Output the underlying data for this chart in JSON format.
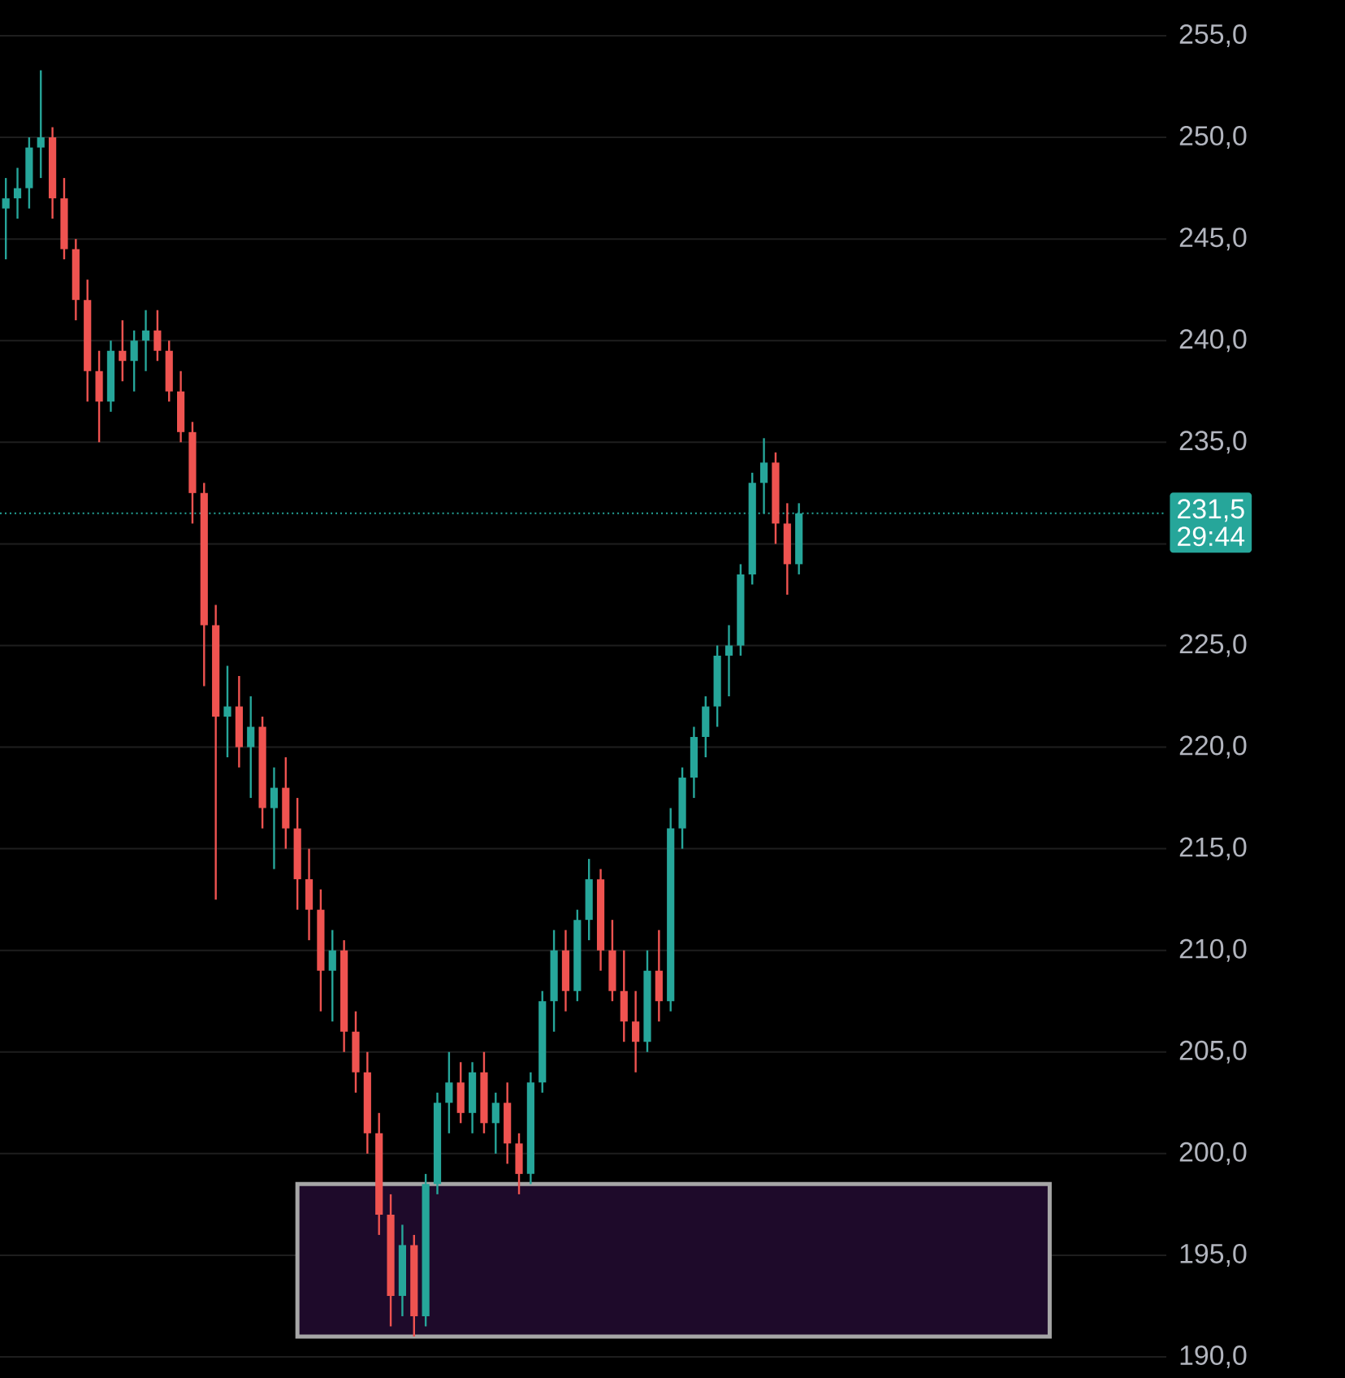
{
  "chart_data": {
    "type": "candlestick",
    "categories": [
      null,
      null,
      null,
      null,
      null,
      null,
      null,
      null,
      null,
      null,
      null,
      null,
      null,
      null,
      null,
      null,
      null,
      null,
      null,
      null,
      null,
      null,
      null,
      null,
      null,
      null,
      null,
      null,
      null,
      null,
      null,
      null,
      null,
      null,
      null,
      null,
      null,
      null,
      null,
      null,
      null,
      null,
      null,
      null,
      null,
      null,
      null,
      null,
      null,
      null,
      null,
      null,
      null,
      null,
      null,
      null,
      null,
      null,
      null,
      null,
      null,
      null,
      null,
      null,
      null,
      null,
      null,
      null,
      null,
      null,
      null,
      null,
      null,
      null,
      null,
      null,
      null,
      null,
      null,
      null,
      null,
      null,
      null,
      null,
      null,
      null,
      null,
      null,
      null,
      null,
      null,
      null,
      null,
      null,
      null,
      null,
      null,
      null,
      null,
      null
    ],
    "ohlc": [
      [
        246.5,
        248,
        244,
        247
      ],
      [
        247,
        248.5,
        246,
        247.5
      ],
      [
        247.5,
        250,
        246.5,
        249.5
      ],
      [
        249.5,
        253.3,
        248,
        250
      ],
      [
        250,
        250.5,
        246,
        247
      ],
      [
        247,
        248,
        244,
        244.5
      ],
      [
        244.5,
        245,
        241,
        242
      ],
      [
        242,
        243,
        237,
        238.5
      ],
      [
        238.5,
        239.5,
        235,
        237
      ],
      [
        237,
        240,
        236.5,
        239.5
      ],
      [
        239.5,
        241,
        238,
        239
      ],
      [
        239,
        240.5,
        237.5,
        240
      ],
      [
        240,
        241.5,
        238.5,
        240.5
      ],
      [
        240.5,
        241.5,
        239,
        239.5
      ],
      [
        239.5,
        240,
        237,
        237.5
      ],
      [
        237.5,
        238.5,
        235,
        235.5
      ],
      [
        235.5,
        236,
        231,
        232.5
      ],
      [
        232.5,
        233,
        223,
        226
      ],
      [
        226,
        227,
        212.5,
        221.5
      ],
      [
        221.5,
        224,
        219.5,
        222
      ],
      [
        222,
        223.5,
        219,
        220
      ],
      [
        220,
        222.5,
        217.5,
        221
      ],
      [
        221,
        221.5,
        216,
        217
      ],
      [
        217,
        219,
        214,
        218
      ],
      [
        218,
        219.5,
        215,
        216
      ],
      [
        216,
        217.5,
        212,
        213.5
      ],
      [
        213.5,
        215,
        210.5,
        212
      ],
      [
        212,
        213,
        207,
        209
      ],
      [
        209,
        211,
        206.5,
        210
      ],
      [
        210,
        210.5,
        205,
        206
      ],
      [
        206,
        207,
        203,
        204
      ],
      [
        204,
        205,
        200,
        201
      ],
      [
        201,
        202,
        196,
        197
      ],
      [
        197,
        198,
        191.5,
        193
      ],
      [
        193,
        196.5,
        192,
        195.5
      ],
      [
        195.5,
        196,
        191,
        192
      ],
      [
        192,
        199,
        191.5,
        198.5
      ],
      [
        198.5,
        203,
        198,
        202.5
      ],
      [
        202.5,
        205,
        201,
        203.5
      ],
      [
        203.5,
        204.5,
        201.5,
        202
      ],
      [
        202,
        204.5,
        201,
        204
      ],
      [
        204,
        205,
        201,
        201.5
      ],
      [
        201.5,
        203,
        200,
        202.5
      ],
      [
        202.5,
        203.5,
        199.5,
        200.5
      ],
      [
        200.5,
        201,
        198,
        199
      ],
      [
        199,
        204,
        198.5,
        203.5
      ],
      [
        203.5,
        208,
        203,
        207.5
      ],
      [
        207.5,
        211,
        206,
        210
      ],
      [
        210,
        211,
        207,
        208
      ],
      [
        208,
        212,
        207.5,
        211.5
      ],
      [
        211.5,
        214.5,
        210.5,
        213.5
      ],
      [
        213.5,
        214,
        209,
        210
      ],
      [
        210,
        211.5,
        207.5,
        208
      ],
      [
        208,
        210,
        205.5,
        206.5
      ],
      [
        206.5,
        208,
        204,
        205.5
      ],
      [
        205.5,
        210,
        205,
        209
      ],
      [
        209,
        211,
        206.5,
        207.5
      ],
      [
        207.5,
        217,
        207,
        216
      ],
      [
        216,
        219,
        215,
        218.5
      ],
      [
        218.5,
        221,
        217.5,
        220.5
      ],
      [
        220.5,
        222.5,
        219.5,
        222
      ],
      [
        222,
        225,
        221,
        224.5
      ],
      [
        224.5,
        226,
        222.5,
        225
      ],
      [
        225,
        229,
        224.5,
        228.5
      ],
      [
        228.5,
        233.5,
        228,
        233
      ],
      [
        233,
        235.2,
        231.5,
        234
      ],
      [
        234,
        234.5,
        230,
        231
      ],
      [
        231,
        232,
        227.5,
        229
      ],
      [
        229,
        232,
        228.5,
        231.5
      ],
      null,
      null,
      null,
      null,
      null,
      null,
      null,
      null,
      null,
      null,
      null,
      null,
      null,
      null,
      null,
      null,
      null,
      null,
      null,
      null,
      null,
      null,
      null,
      null,
      null,
      null,
      null,
      null,
      null,
      null,
      null
    ],
    "ylim": [
      190,
      255
    ],
    "yticks": [
      {
        "value": 190,
        "label": "190,0"
      },
      {
        "value": 195,
        "label": "195,0"
      },
      {
        "value": 200,
        "label": "200,0"
      },
      {
        "value": 205,
        "label": "205,0"
      },
      {
        "value": 210,
        "label": "210,0"
      },
      {
        "value": 215,
        "label": "215,0"
      },
      {
        "value": 220,
        "label": "220,0"
      },
      {
        "value": 225,
        "label": "225,0"
      },
      {
        "value": 230,
        "label": null
      },
      {
        "value": 235,
        "label": "235,0"
      },
      {
        "value": 240,
        "label": "240,0"
      },
      {
        "value": 245,
        "label": "245,0"
      },
      {
        "value": 250,
        "label": "250,0"
      },
      {
        "value": 255,
        "label": "255,0"
      }
    ],
    "ref_lines": [
      {
        "axis": "y",
        "value": 231.5,
        "label": "231,5",
        "color": "#26a69a",
        "line_style": "dotted"
      }
    ],
    "bands": [
      {
        "axis": "y",
        "from": 191.0,
        "to": 198.5,
        "color": "#1e0a2a"
      }
    ],
    "annotations": [
      "29:44"
    ],
    "grid": "y",
    "tick_labels": "y"
  }
}
